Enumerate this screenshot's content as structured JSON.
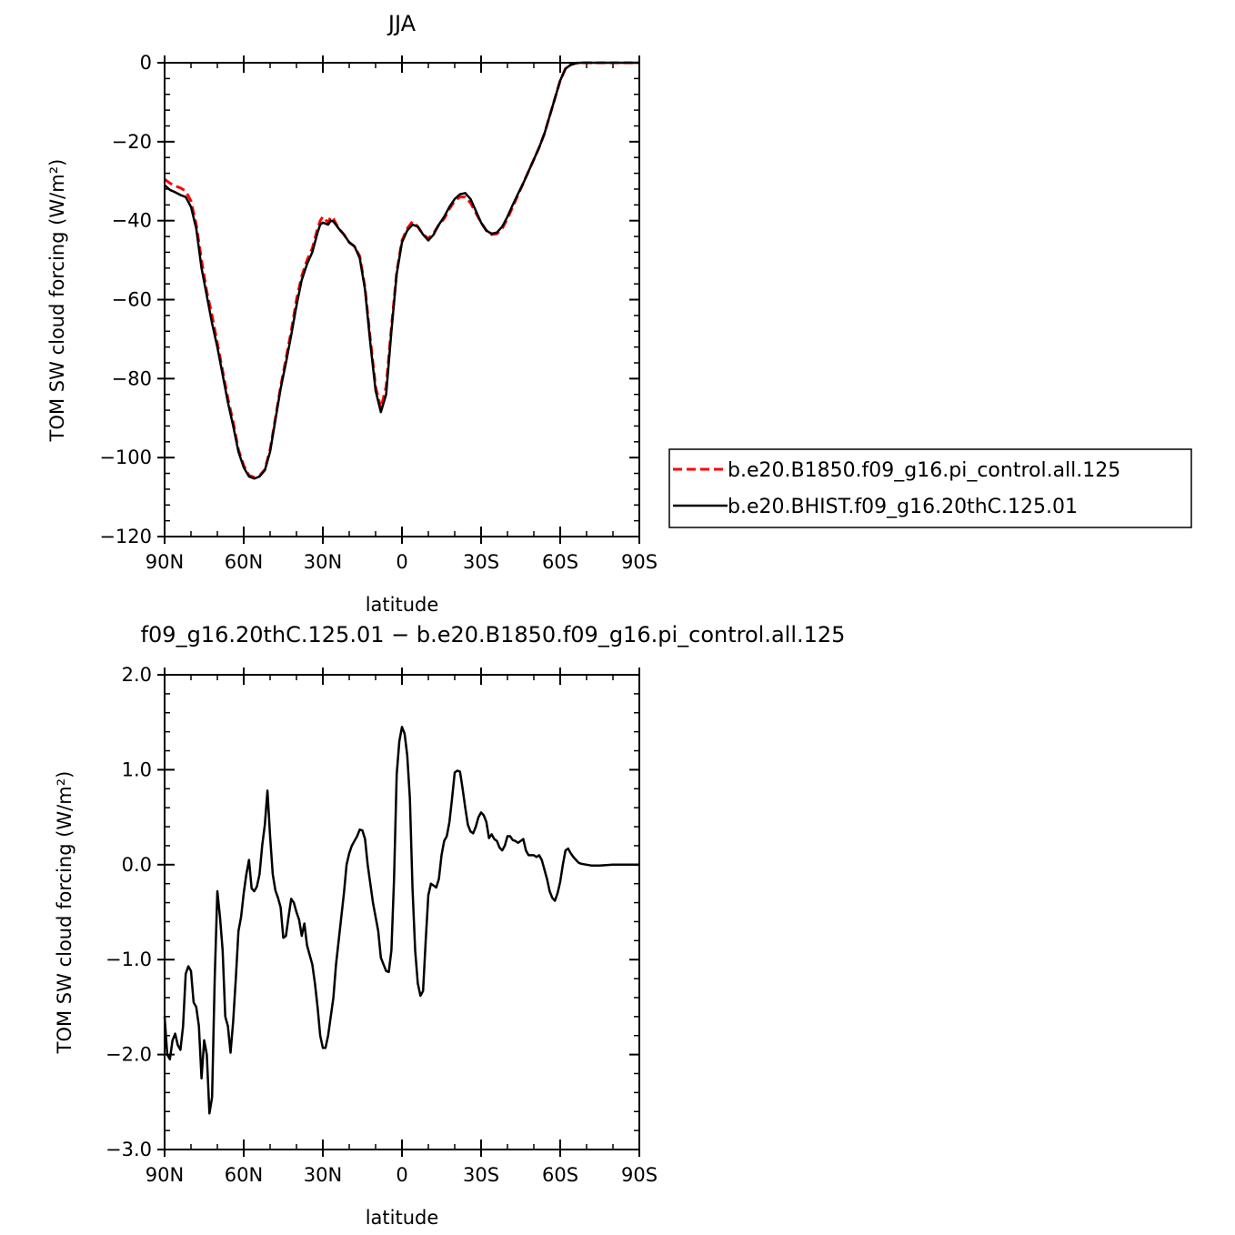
{
  "chart_data": [
    {
      "type": "line",
      "title": "JJA",
      "xlabel": "latitude",
      "ylabel": "TOM SW cloud forcing (W/m²)",
      "xlim": [
        -90,
        90
      ],
      "ylim": [
        -120,
        0
      ],
      "xticks": [
        -90,
        -60,
        -30,
        0,
        30,
        60,
        90
      ],
      "xtick_labels": [
        "90N",
        "60N",
        "30N",
        "0",
        "30S",
        "60S",
        "90S"
      ],
      "yticks": [
        0,
        -20,
        -40,
        -60,
        -80,
        -100,
        -120
      ],
      "ytick_labels": [
        "0",
        "−20",
        "−40",
        "−60",
        "−80",
        "−100",
        "−120"
      ],
      "legend": "right",
      "series": [
        {
          "name": "b.e20.B1850.f09_g16.pi_control.all.125",
          "color": "#ff0000",
          "dash": "dashed",
          "x": [
            -90,
            -88,
            -86,
            -84,
            -82,
            -80,
            -78,
            -76,
            -74,
            -72,
            -70,
            -68,
            -66,
            -64,
            -62,
            -60,
            -58,
            -56,
            -54,
            -52,
            -50,
            -48,
            -46,
            -44,
            -42,
            -40,
            -38,
            -36,
            -34,
            -32,
            -31,
            -30,
            -28,
            -27,
            -26,
            -24,
            -22,
            -20,
            -18,
            -16,
            -14,
            -12,
            -10,
            -8,
            -6,
            -4,
            -2,
            0,
            2,
            4,
            6,
            8,
            10,
            12,
            14,
            16,
            18,
            20,
            22,
            24,
            26,
            28,
            30,
            32,
            34,
            36,
            38,
            40,
            42,
            44,
            46,
            48,
            50,
            52,
            54,
            56,
            58,
            60,
            62,
            64,
            66,
            68,
            70,
            75,
            80,
            85,
            90
          ],
          "y": [
            -29.5,
            -30.5,
            -31.2,
            -31.7,
            -32.5,
            -35,
            -41,
            -50,
            -58,
            -64,
            -71,
            -78,
            -85,
            -91,
            -98,
            -102,
            -104.5,
            -105,
            -104.6,
            -103,
            -98,
            -90,
            -82,
            -75,
            -68,
            -60,
            -54,
            -50,
            -47,
            -42,
            -40,
            -39,
            -40.5,
            -39,
            -39.5,
            -42,
            -43.5,
            -45.5,
            -46.5,
            -49,
            -57,
            -70,
            -82,
            -87.5,
            -82,
            -67,
            -53,
            -45,
            -42,
            -40.2,
            -41.5,
            -43.5,
            -44.5,
            -43.2,
            -41,
            -39.5,
            -37,
            -35,
            -34,
            -34,
            -35.5,
            -38,
            -40.5,
            -42.5,
            -43.5,
            -43.3,
            -42,
            -39.5,
            -36.5,
            -33.5,
            -30.5,
            -27.5,
            -24.5,
            -21.5,
            -18,
            -13.5,
            -9,
            -4.5,
            -1.5,
            -0.5,
            -0.1,
            0,
            0,
            0,
            0,
            0,
            0
          ]
        },
        {
          "name": "b.e20.BHIST.f09_g16.20thC.125.01",
          "color": "#000000",
          "dash": "solid",
          "x": [
            -90,
            -88,
            -86,
            -84,
            -82,
            -80,
            -78,
            -76,
            -74,
            -72,
            -70,
            -68,
            -66,
            -64,
            -62,
            -60,
            -58,
            -56,
            -54,
            -52,
            -50,
            -48,
            -46,
            -44,
            -42,
            -40,
            -38,
            -36,
            -34,
            -32,
            -31,
            -30,
            -28,
            -27,
            -26,
            -24,
            -22,
            -20,
            -18,
            -16,
            -14,
            -12,
            -10,
            -8,
            -6,
            -4,
            -2,
            0,
            2,
            4,
            6,
            8,
            10,
            12,
            14,
            16,
            18,
            20,
            22,
            24,
            26,
            28,
            30,
            32,
            34,
            36,
            38,
            40,
            42,
            44,
            46,
            48,
            50,
            52,
            54,
            56,
            58,
            60,
            62,
            64,
            66,
            68,
            70,
            75,
            80,
            85,
            90
          ],
          "y": [
            -31,
            -32.2,
            -32.8,
            -33.5,
            -34,
            -36.5,
            -42,
            -52,
            -59,
            -66,
            -72,
            -79,
            -86,
            -92,
            -98.5,
            -102.5,
            -104.8,
            -105.3,
            -104.8,
            -103.2,
            -98.5,
            -90.5,
            -82.5,
            -76,
            -69,
            -61.5,
            -55,
            -51,
            -48,
            -43,
            -41,
            -40.5,
            -41,
            -40,
            -40.2,
            -42,
            -43.5,
            -45.5,
            -46.5,
            -49.5,
            -57.5,
            -71,
            -83,
            -88.5,
            -84,
            -68,
            -53.5,
            -45.5,
            -42.5,
            -41,
            -41.5,
            -43.5,
            -45,
            -43.5,
            -41,
            -39,
            -36.5,
            -34.5,
            -33.3,
            -33,
            -34.5,
            -37.5,
            -40.5,
            -42.5,
            -43.3,
            -43,
            -41.5,
            -39,
            -36,
            -33.2,
            -30.5,
            -27.5,
            -24.5,
            -21.5,
            -18,
            -13.5,
            -9,
            -4.5,
            -1.5,
            -0.5,
            -0.1,
            0,
            0,
            0,
            0,
            0,
            0
          ]
        }
      ]
    },
    {
      "type": "line",
      "title": "f09_g16.20thC.125.01 − b.e20.B1850.f09_g16.pi_control.all.125",
      "xlabel": "latitude",
      "ylabel": "TOM SW cloud forcing (W/m²)",
      "xlim": [
        -90,
        90
      ],
      "ylim": [
        -3.0,
        2.0
      ],
      "xticks": [
        -90,
        -60,
        -30,
        0,
        30,
        60,
        90
      ],
      "xtick_labels": [
        "90N",
        "60N",
        "30N",
        "0",
        "30S",
        "60S",
        "90S"
      ],
      "yticks": [
        2.0,
        1.0,
        0.0,
        -1.0,
        -2.0,
        -3.0
      ],
      "ytick_labels": [
        "2.0",
        "1.0",
        "0.0",
        "−1.0",
        "−2.0",
        "−3.0"
      ],
      "series": [
        {
          "color": "#000000",
          "dash": "solid",
          "x": [
            -90,
            -89,
            -88,
            -87,
            -86,
            -85,
            -84,
            -83,
            -82,
            -81,
            -80,
            -79,
            -78,
            -77,
            -76,
            -75,
            -74,
            -73,
            -72,
            -71,
            -70,
            -69,
            -68,
            -67,
            -66,
            -65,
            -64,
            -63,
            -62,
            -61,
            -60,
            -59,
            -58,
            -57,
            -56,
            -55,
            -54,
            -53,
            -52,
            -51,
            -50,
            -49,
            -48,
            -47,
            -46,
            -45,
            -44,
            -43,
            -42,
            -41,
            -40,
            -39,
            -38,
            -37,
            -36,
            -35,
            -34,
            -33,
            -32,
            -31,
            -30,
            -29,
            -28,
            -27,
            -26,
            -25,
            -24,
            -23,
            -22,
            -21,
            -20,
            -19,
            -18,
            -17,
            -16,
            -15,
            -14,
            -13,
            -12,
            -11,
            -10,
            -9,
            -8,
            -7,
            -6,
            -5,
            -4,
            -3,
            -2,
            -1,
            0,
            1,
            2,
            3,
            4,
            5,
            6,
            7,
            8,
            9,
            10,
            11,
            12,
            13,
            14,
            15,
            16,
            17,
            18,
            19,
            20,
            21,
            22,
            23,
            24,
            25,
            26,
            27,
            28,
            29,
            30,
            31,
            32,
            33,
            34,
            35,
            36,
            37,
            38,
            39,
            40,
            41,
            42,
            43,
            44,
            45,
            46,
            47,
            48,
            49,
            50,
            51,
            52,
            53,
            54,
            55,
            56,
            57,
            58,
            59,
            60,
            61,
            62,
            63,
            64,
            65,
            66,
            67,
            68,
            70,
            72,
            75,
            80,
            85,
            90
          ],
          "y": [
            -1.6,
            -2.0,
            -2.05,
            -1.85,
            -1.78,
            -1.9,
            -1.95,
            -1.7,
            -1.15,
            -1.07,
            -1.12,
            -1.45,
            -1.5,
            -1.7,
            -2.25,
            -1.85,
            -2.0,
            -2.62,
            -2.45,
            -1.2,
            -0.28,
            -0.55,
            -0.9,
            -1.6,
            -1.7,
            -1.98,
            -1.65,
            -1.2,
            -0.7,
            -0.55,
            -0.3,
            -0.1,
            0.05,
            -0.25,
            -0.28,
            -0.23,
            -0.1,
            0.2,
            0.42,
            0.78,
            0.3,
            -0.1,
            -0.27,
            -0.35,
            -0.45,
            -0.77,
            -0.75,
            -0.55,
            -0.36,
            -0.4,
            -0.5,
            -0.58,
            -0.75,
            -0.62,
            -0.85,
            -0.95,
            -1.05,
            -1.25,
            -1.5,
            -1.8,
            -1.93,
            -1.93,
            -1.8,
            -1.6,
            -1.4,
            -1.05,
            -0.8,
            -0.55,
            -0.3,
            0.0,
            0.12,
            0.2,
            0.25,
            0.3,
            0.37,
            0.36,
            0.27,
            0.0,
            -0.2,
            -0.4,
            -0.55,
            -0.7,
            -0.98,
            -1.05,
            -1.12,
            -1.13,
            -0.9,
            -0.15,
            0.95,
            1.3,
            1.45,
            1.38,
            1.15,
            0.7,
            -0.25,
            -0.9,
            -1.25,
            -1.38,
            -1.33,
            -0.8,
            -0.32,
            -0.2,
            -0.22,
            -0.24,
            -0.15,
            0.1,
            0.25,
            0.3,
            0.45,
            0.7,
            0.97,
            0.99,
            0.98,
            0.8,
            0.6,
            0.42,
            0.35,
            0.33,
            0.4,
            0.5,
            0.55,
            0.52,
            0.45,
            0.28,
            0.32,
            0.27,
            0.25,
            0.18,
            0.15,
            0.2,
            0.3,
            0.3,
            0.26,
            0.25,
            0.23,
            0.25,
            0.27,
            0.15,
            0.1,
            0.1,
            0.1,
            0.08,
            0.1,
            0.05,
            -0.05,
            -0.15,
            -0.28,
            -0.35,
            -0.38,
            -0.3,
            -0.18,
            0.0,
            0.15,
            0.17,
            0.12,
            0.08,
            0.05,
            0.02,
            0.01,
            0.0,
            -0.01,
            -0.01,
            0.0,
            0.0,
            0.0
          ]
        }
      ]
    }
  ]
}
